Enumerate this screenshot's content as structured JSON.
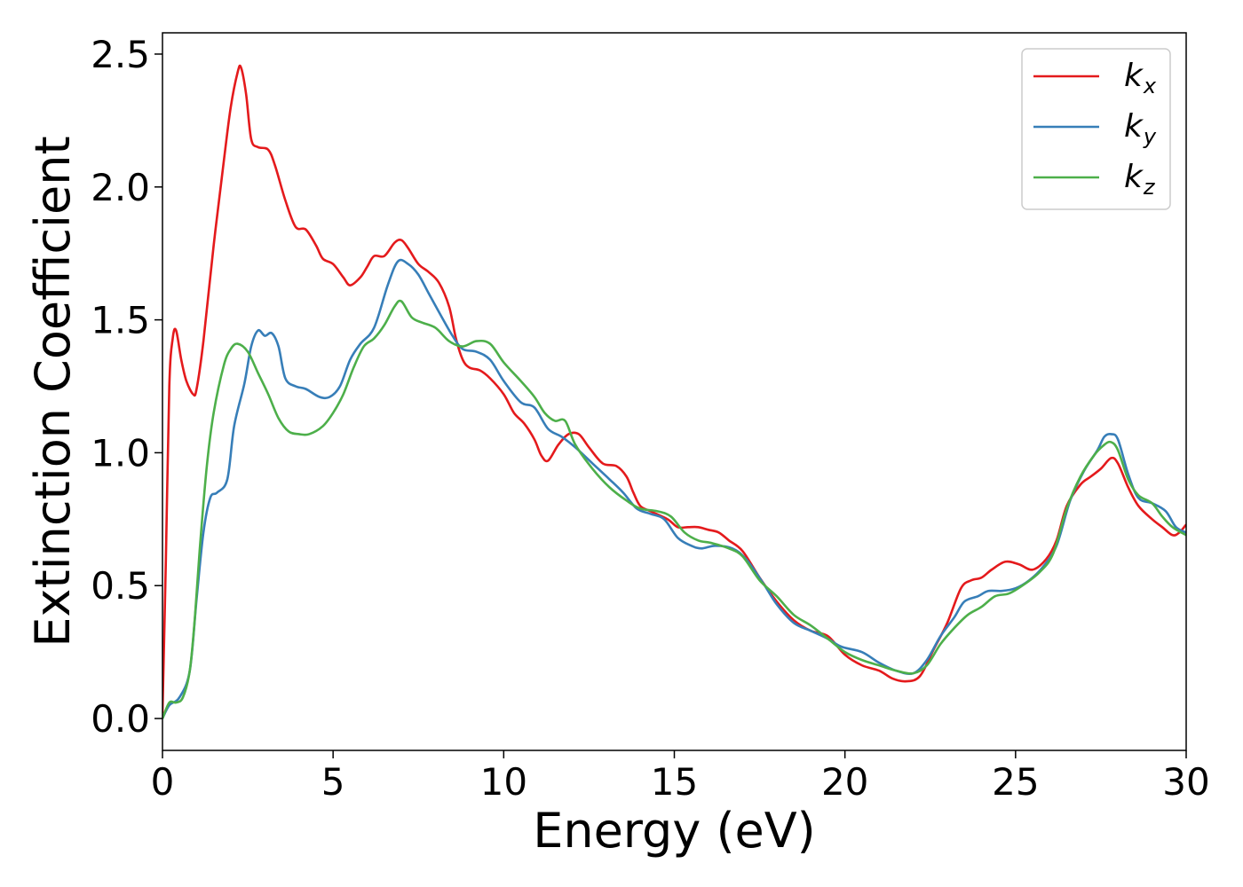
{
  "chart_data": {
    "type": "line",
    "title": "",
    "xlabel": "Energy (eV)",
    "ylabel": "Extinction Coefficient",
    "xlim": [
      0,
      30
    ],
    "ylim": [
      -0.12,
      2.58
    ],
    "xticks": [
      0,
      5,
      10,
      15,
      20,
      25,
      30
    ],
    "xtick_labels": [
      "0",
      "5",
      "10",
      "15",
      "20",
      "25",
      "30"
    ],
    "yticks": [
      0.0,
      0.5,
      1.0,
      1.5,
      2.0,
      2.5
    ],
    "ytick_labels": [
      "0.0",
      "0.5",
      "1.0",
      "1.5",
      "2.0",
      "2.5"
    ],
    "grid": false,
    "legend_position": "top-right",
    "series": [
      {
        "name": "k_x",
        "legend_base": "k",
        "legend_sub": "x",
        "color": "#e41a1c",
        "points": [
          [
            0,
            0.02
          ],
          [
            0.1,
            0.6
          ],
          [
            0.2,
            1.25
          ],
          [
            0.3,
            1.43
          ],
          [
            0.4,
            1.46
          ],
          [
            0.55,
            1.35
          ],
          [
            0.7,
            1.27
          ],
          [
            0.9,
            1.22
          ],
          [
            1.0,
            1.24
          ],
          [
            1.2,
            1.42
          ],
          [
            1.5,
            1.78
          ],
          [
            1.8,
            2.1
          ],
          [
            2.0,
            2.3
          ],
          [
            2.2,
            2.43
          ],
          [
            2.3,
            2.45
          ],
          [
            2.45,
            2.35
          ],
          [
            2.6,
            2.18
          ],
          [
            2.8,
            2.15
          ],
          [
            3.1,
            2.14
          ],
          [
            3.3,
            2.08
          ],
          [
            3.6,
            1.95
          ],
          [
            3.9,
            1.85
          ],
          [
            4.2,
            1.84
          ],
          [
            4.5,
            1.78
          ],
          [
            4.7,
            1.73
          ],
          [
            5.0,
            1.71
          ],
          [
            5.3,
            1.66
          ],
          [
            5.5,
            1.63
          ],
          [
            5.8,
            1.66
          ],
          [
            6.0,
            1.7
          ],
          [
            6.2,
            1.74
          ],
          [
            6.5,
            1.74
          ],
          [
            6.8,
            1.79
          ],
          [
            7.0,
            1.8
          ],
          [
            7.2,
            1.77
          ],
          [
            7.5,
            1.71
          ],
          [
            7.8,
            1.68
          ],
          [
            8.1,
            1.64
          ],
          [
            8.4,
            1.55
          ],
          [
            8.6,
            1.43
          ],
          [
            8.8,
            1.35
          ],
          [
            9.0,
            1.32
          ],
          [
            9.3,
            1.31
          ],
          [
            9.6,
            1.28
          ],
          [
            10.0,
            1.22
          ],
          [
            10.3,
            1.15
          ],
          [
            10.6,
            1.11
          ],
          [
            10.9,
            1.05
          ],
          [
            11.1,
            0.99
          ],
          [
            11.3,
            0.97
          ],
          [
            11.6,
            1.03
          ],
          [
            11.9,
            1.07
          ],
          [
            12.2,
            1.07
          ],
          [
            12.5,
            1.02
          ],
          [
            12.9,
            0.96
          ],
          [
            13.3,
            0.95
          ],
          [
            13.6,
            0.91
          ],
          [
            13.8,
            0.85
          ],
          [
            14.0,
            0.8
          ],
          [
            14.3,
            0.78
          ],
          [
            14.8,
            0.75
          ],
          [
            15.1,
            0.72
          ],
          [
            15.4,
            0.72
          ],
          [
            15.7,
            0.72
          ],
          [
            16.0,
            0.71
          ],
          [
            16.3,
            0.7
          ],
          [
            16.6,
            0.67
          ],
          [
            17.0,
            0.63
          ],
          [
            17.5,
            0.53
          ],
          [
            18.0,
            0.44
          ],
          [
            18.5,
            0.37
          ],
          [
            19.0,
            0.33
          ],
          [
            19.5,
            0.31
          ],
          [
            20.0,
            0.24
          ],
          [
            20.5,
            0.2
          ],
          [
            21.0,
            0.18
          ],
          [
            21.4,
            0.15
          ],
          [
            21.8,
            0.14
          ],
          [
            22.2,
            0.16
          ],
          [
            22.6,
            0.26
          ],
          [
            23.0,
            0.36
          ],
          [
            23.4,
            0.49
          ],
          [
            23.7,
            0.52
          ],
          [
            24.0,
            0.53
          ],
          [
            24.3,
            0.56
          ],
          [
            24.7,
            0.59
          ],
          [
            25.1,
            0.58
          ],
          [
            25.5,
            0.56
          ],
          [
            25.9,
            0.6
          ],
          [
            26.2,
            0.67
          ],
          [
            26.5,
            0.8
          ],
          [
            26.9,
            0.88
          ],
          [
            27.2,
            0.91
          ],
          [
            27.5,
            0.94
          ],
          [
            27.8,
            0.98
          ],
          [
            28.0,
            0.96
          ],
          [
            28.3,
            0.87
          ],
          [
            28.6,
            0.8
          ],
          [
            29.0,
            0.75
          ],
          [
            29.3,
            0.72
          ],
          [
            29.6,
            0.69
          ],
          [
            29.8,
            0.7
          ],
          [
            30.0,
            0.73
          ]
        ]
      },
      {
        "name": "k_y",
        "legend_base": "k",
        "legend_sub": "y",
        "color": "#377eb8",
        "points": [
          [
            0,
            0.0
          ],
          [
            0.2,
            0.05
          ],
          [
            0.5,
            0.08
          ],
          [
            0.8,
            0.18
          ],
          [
            1.0,
            0.45
          ],
          [
            1.2,
            0.7
          ],
          [
            1.4,
            0.83
          ],
          [
            1.6,
            0.85
          ],
          [
            1.9,
            0.9
          ],
          [
            2.1,
            1.1
          ],
          [
            2.4,
            1.26
          ],
          [
            2.6,
            1.4
          ],
          [
            2.8,
            1.46
          ],
          [
            3.0,
            1.44
          ],
          [
            3.2,
            1.45
          ],
          [
            3.4,
            1.4
          ],
          [
            3.6,
            1.28
          ],
          [
            3.9,
            1.25
          ],
          [
            4.2,
            1.24
          ],
          [
            4.6,
            1.21
          ],
          [
            4.9,
            1.21
          ],
          [
            5.2,
            1.25
          ],
          [
            5.5,
            1.35
          ],
          [
            5.8,
            1.41
          ],
          [
            6.2,
            1.47
          ],
          [
            6.6,
            1.63
          ],
          [
            6.9,
            1.72
          ],
          [
            7.2,
            1.71
          ],
          [
            7.5,
            1.67
          ],
          [
            7.8,
            1.6
          ],
          [
            8.1,
            1.53
          ],
          [
            8.5,
            1.44
          ],
          [
            8.8,
            1.39
          ],
          [
            9.2,
            1.38
          ],
          [
            9.6,
            1.35
          ],
          [
            10.0,
            1.27
          ],
          [
            10.5,
            1.19
          ],
          [
            10.9,
            1.17
          ],
          [
            11.3,
            1.09
          ],
          [
            11.7,
            1.06
          ],
          [
            12.1,
            1.02
          ],
          [
            12.6,
            0.96
          ],
          [
            13.1,
            0.9
          ],
          [
            13.5,
            0.85
          ],
          [
            13.9,
            0.79
          ],
          [
            14.3,
            0.77
          ],
          [
            14.7,
            0.75
          ],
          [
            15.1,
            0.68
          ],
          [
            15.5,
            0.65
          ],
          [
            15.8,
            0.64
          ],
          [
            16.2,
            0.65
          ],
          [
            16.7,
            0.64
          ],
          [
            17.1,
            0.6
          ],
          [
            17.6,
            0.51
          ],
          [
            18.0,
            0.43
          ],
          [
            18.5,
            0.36
          ],
          [
            19.0,
            0.33
          ],
          [
            19.5,
            0.3
          ],
          [
            19.9,
            0.27
          ],
          [
            20.5,
            0.25
          ],
          [
            21.0,
            0.21
          ],
          [
            21.5,
            0.18
          ],
          [
            22.0,
            0.17
          ],
          [
            22.4,
            0.22
          ],
          [
            22.8,
            0.31
          ],
          [
            23.2,
            0.38
          ],
          [
            23.5,
            0.44
          ],
          [
            23.9,
            0.46
          ],
          [
            24.2,
            0.48
          ],
          [
            24.6,
            0.48
          ],
          [
            25.0,
            0.49
          ],
          [
            25.4,
            0.52
          ],
          [
            25.8,
            0.57
          ],
          [
            26.2,
            0.65
          ],
          [
            26.6,
            0.82
          ],
          [
            27.0,
            0.93
          ],
          [
            27.4,
            1.01
          ],
          [
            27.6,
            1.06
          ],
          [
            27.8,
            1.07
          ],
          [
            28.0,
            1.05
          ],
          [
            28.3,
            0.92
          ],
          [
            28.6,
            0.83
          ],
          [
            29.0,
            0.81
          ],
          [
            29.4,
            0.78
          ],
          [
            29.7,
            0.72
          ],
          [
            30.0,
            0.7
          ]
        ]
      },
      {
        "name": "k_z",
        "legend_base": "k",
        "legend_sub": "z",
        "color": "#4daf4a",
        "points": [
          [
            0,
            0.0
          ],
          [
            0.2,
            0.06
          ],
          [
            0.4,
            0.06
          ],
          [
            0.6,
            0.08
          ],
          [
            0.8,
            0.18
          ],
          [
            0.95,
            0.38
          ],
          [
            1.1,
            0.65
          ],
          [
            1.3,
            0.95
          ],
          [
            1.5,
            1.15
          ],
          [
            1.8,
            1.33
          ],
          [
            2.0,
            1.39
          ],
          [
            2.2,
            1.41
          ],
          [
            2.5,
            1.38
          ],
          [
            2.8,
            1.3
          ],
          [
            3.1,
            1.22
          ],
          [
            3.4,
            1.13
          ],
          [
            3.7,
            1.08
          ],
          [
            4.0,
            1.07
          ],
          [
            4.3,
            1.07
          ],
          [
            4.7,
            1.1
          ],
          [
            5.0,
            1.15
          ],
          [
            5.3,
            1.22
          ],
          [
            5.6,
            1.32
          ],
          [
            5.9,
            1.4
          ],
          [
            6.2,
            1.43
          ],
          [
            6.5,
            1.48
          ],
          [
            6.8,
            1.55
          ],
          [
            7.0,
            1.57
          ],
          [
            7.3,
            1.51
          ],
          [
            7.6,
            1.49
          ],
          [
            8.0,
            1.47
          ],
          [
            8.4,
            1.42
          ],
          [
            8.8,
            1.4
          ],
          [
            9.2,
            1.42
          ],
          [
            9.6,
            1.41
          ],
          [
            10.0,
            1.34
          ],
          [
            10.5,
            1.27
          ],
          [
            10.9,
            1.21
          ],
          [
            11.2,
            1.15
          ],
          [
            11.5,
            1.12
          ],
          [
            11.8,
            1.12
          ],
          [
            12.1,
            1.03
          ],
          [
            12.6,
            0.94
          ],
          [
            13.1,
            0.87
          ],
          [
            13.6,
            0.82
          ],
          [
            14.0,
            0.79
          ],
          [
            14.5,
            0.78
          ],
          [
            14.9,
            0.76
          ],
          [
            15.3,
            0.7
          ],
          [
            15.7,
            0.67
          ],
          [
            16.1,
            0.66
          ],
          [
            16.6,
            0.64
          ],
          [
            17.0,
            0.61
          ],
          [
            17.5,
            0.52
          ],
          [
            18.0,
            0.46
          ],
          [
            18.5,
            0.39
          ],
          [
            19.0,
            0.35
          ],
          [
            19.5,
            0.3
          ],
          [
            20.0,
            0.25
          ],
          [
            20.5,
            0.22
          ],
          [
            21.0,
            0.2
          ],
          [
            21.5,
            0.18
          ],
          [
            22.0,
            0.17
          ],
          [
            22.4,
            0.2
          ],
          [
            22.8,
            0.28
          ],
          [
            23.2,
            0.34
          ],
          [
            23.6,
            0.39
          ],
          [
            24.0,
            0.42
          ],
          [
            24.4,
            0.46
          ],
          [
            24.8,
            0.47
          ],
          [
            25.2,
            0.5
          ],
          [
            25.7,
            0.55
          ],
          [
            26.1,
            0.62
          ],
          [
            26.5,
            0.79
          ],
          [
            26.9,
            0.91
          ],
          [
            27.3,
            0.99
          ],
          [
            27.6,
            1.03
          ],
          [
            27.8,
            1.04
          ],
          [
            28.0,
            1.01
          ],
          [
            28.3,
            0.9
          ],
          [
            28.6,
            0.84
          ],
          [
            29.0,
            0.81
          ],
          [
            29.3,
            0.76
          ],
          [
            29.6,
            0.72
          ],
          [
            30.0,
            0.69
          ]
        ]
      }
    ]
  }
}
